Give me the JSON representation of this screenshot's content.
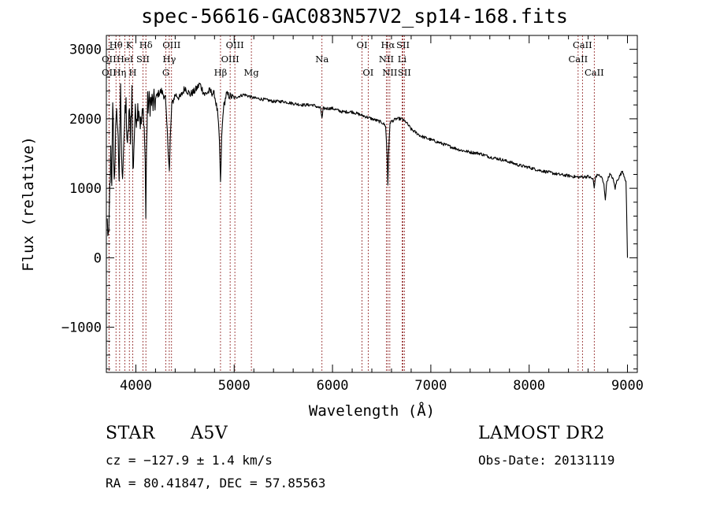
{
  "chart_data": {
    "type": "line",
    "title": "spec-56616-GAC083N57V2_sp14-168.fits",
    "xlabel": "Wavelength (Å)",
    "ylabel": "Flux (relative)",
    "xlim": [
      3700,
      9100
    ],
    "ylim": [
      -1650,
      3200
    ],
    "x_ticks": [
      4000,
      5000,
      6000,
      7000,
      8000,
      9000
    ],
    "y_ticks": [
      -1000,
      0,
      1000,
      2000,
      3000
    ],
    "grid": false,
    "colors": {
      "spectrum": "#000000",
      "line_markers": "#8b1a1a"
    },
    "spectrum_nodes": [
      [
        3710,
        500
      ],
      [
        3725,
        200
      ],
      [
        3735,
        1000
      ],
      [
        3745,
        1450
      ],
      [
        3755,
        900
      ],
      [
        3765,
        2300
      ],
      [
        3780,
        1100
      ],
      [
        3795,
        1800
      ],
      [
        3810,
        2100
      ],
      [
        3830,
        1200
      ],
      [
        3845,
        2350
      ],
      [
        3860,
        1100
      ],
      [
        3880,
        1800
      ],
      [
        3900,
        2200
      ],
      [
        3915,
        1500
      ],
      [
        3930,
        2100
      ],
      [
        3945,
        1800
      ],
      [
        3960,
        2400
      ],
      [
        3970,
        1200
      ],
      [
        3990,
        2000
      ],
      [
        4010,
        2100
      ],
      [
        4030,
        2200
      ],
      [
        4050,
        1900
      ],
      [
        4080,
        2100
      ],
      [
        4095,
        1400
      ],
      [
        4101,
        500
      ],
      [
        4108,
        1600
      ],
      [
        4120,
        2200
      ],
      [
        4150,
        2250
      ],
      [
        4180,
        2200
      ],
      [
        4220,
        2350
      ],
      [
        4260,
        2400
      ],
      [
        4300,
        2300
      ],
      [
        4320,
        1800
      ],
      [
        4335,
        1400
      ],
      [
        4341,
        1250
      ],
      [
        4350,
        1700
      ],
      [
        4365,
        2200
      ],
      [
        4400,
        2350
      ],
      [
        4450,
        2300
      ],
      [
        4500,
        2450
      ],
      [
        4550,
        2350
      ],
      [
        4600,
        2400
      ],
      [
        4650,
        2500
      ],
      [
        4700,
        2350
      ],
      [
        4750,
        2400
      ],
      [
        4800,
        2350
      ],
      [
        4830,
        2100
      ],
      [
        4850,
        1700
      ],
      [
        4861,
        1050
      ],
      [
        4872,
        1700
      ],
      [
        4890,
        2150
      ],
      [
        4920,
        2350
      ],
      [
        5000,
        2300
      ],
      [
        5100,
        2350
      ],
      [
        5200,
        2300
      ],
      [
        5300,
        2280
      ],
      [
        5400,
        2250
      ],
      [
        5500,
        2250
      ],
      [
        5600,
        2220
      ],
      [
        5700,
        2200
      ],
      [
        5800,
        2200
      ],
      [
        5880,
        2150
      ],
      [
        5893,
        2000
      ],
      [
        5906,
        2150
      ],
      [
        6000,
        2150
      ],
      [
        6100,
        2100
      ],
      [
        6200,
        2100
      ],
      [
        6300,
        2050
      ],
      [
        6400,
        2000
      ],
      [
        6500,
        1950
      ],
      [
        6540,
        1900
      ],
      [
        6555,
        1500
      ],
      [
        6563,
        1050
      ],
      [
        6571,
        1500
      ],
      [
        6585,
        1950
      ],
      [
        6650,
        2000
      ],
      [
        6700,
        2000
      ],
      [
        6750,
        1950
      ],
      [
        6800,
        1850
      ],
      [
        6900,
        1750
      ],
      [
        7000,
        1700
      ],
      [
        7100,
        1650
      ],
      [
        7200,
        1600
      ],
      [
        7300,
        1550
      ],
      [
        7400,
        1520
      ],
      [
        7500,
        1500
      ],
      [
        7600,
        1450
      ],
      [
        7700,
        1420
      ],
      [
        7800,
        1380
      ],
      [
        7900,
        1330
      ],
      [
        8000,
        1300
      ],
      [
        8100,
        1260
      ],
      [
        8200,
        1230
      ],
      [
        8300,
        1200
      ],
      [
        8400,
        1180
      ],
      [
        8500,
        1160
      ],
      [
        8600,
        1170
      ],
      [
        8650,
        1130
      ],
      [
        8662,
        1000
      ],
      [
        8672,
        1150
      ],
      [
        8700,
        1200
      ],
      [
        8740,
        1150
      ],
      [
        8760,
        1050
      ],
      [
        8775,
        850
      ],
      [
        8790,
        1100
      ],
      [
        8820,
        1200
      ],
      [
        8850,
        1150
      ],
      [
        8875,
        1000
      ],
      [
        8890,
        1100
      ],
      [
        8910,
        1150
      ],
      [
        8930,
        1200
      ],
      [
        8950,
        1250
      ],
      [
        8985,
        1100
      ],
      [
        9000,
        0
      ]
    ],
    "spectral_lines": [
      {
        "name": "Hθ",
        "wavelength": 3798,
        "row": 0
      },
      {
        "name": "OII",
        "wavelength": 3727,
        "row": 1
      },
      {
        "name": "OII",
        "wavelength": 3727,
        "row": 2
      },
      {
        "name": "Hη",
        "wavelength": 3835,
        "row": 2
      },
      {
        "name": "HeI",
        "wavelength": 3889,
        "row": 1
      },
      {
        "name": "K",
        "wavelength": 3934,
        "row": 0
      },
      {
        "name": "H",
        "wavelength": 3969,
        "row": 2
      },
      {
        "name": "Hδ",
        "wavelength": 4102,
        "row": 0
      },
      {
        "name": "SII",
        "wavelength": 4072,
        "row": 1
      },
      {
        "name": "OIII",
        "wavelength": 4363,
        "row": 0
      },
      {
        "name": "Hγ",
        "wavelength": 4340,
        "row": 1
      },
      {
        "name": "G",
        "wavelength": 4305,
        "row": 2
      },
      {
        "name": "Hβ",
        "wavelength": 4861,
        "row": 2
      },
      {
        "name": "OIII",
        "wavelength": 5007,
        "row": 0
      },
      {
        "name": "OIII",
        "wavelength": 4959,
        "row": 1
      },
      {
        "name": "Mg",
        "wavelength": 5175,
        "row": 2
      },
      {
        "name": "Na",
        "wavelength": 5893,
        "row": 1
      },
      {
        "name": "OI",
        "wavelength": 6300,
        "row": 0
      },
      {
        "name": "OI",
        "wavelength": 6363,
        "row": 2
      },
      {
        "name": "Hα",
        "wavelength": 6563,
        "row": 0
      },
      {
        "name": "NII",
        "wavelength": 6548,
        "row": 1
      },
      {
        "name": "NII",
        "wavelength": 6583,
        "row": 2
      },
      {
        "name": "SII",
        "wavelength": 6717,
        "row": 0
      },
      {
        "name": "Li",
        "wavelength": 6708,
        "row": 1
      },
      {
        "name": "SII",
        "wavelength": 6731,
        "row": 2
      },
      {
        "name": "CaII",
        "wavelength": 8542,
        "row": 0
      },
      {
        "name": "CaII",
        "wavelength": 8498,
        "row": 1
      },
      {
        "name": "CaII",
        "wavelength": 8662,
        "row": 2
      }
    ]
  },
  "info": {
    "object_class": "STAR",
    "subclass": "A5V",
    "survey": "LAMOST DR2",
    "cz": "cz = −127.9 ± 1.4 km/s",
    "obs_date": "Obs-Date: 20131119",
    "coords": "RA =  80.41847, DEC =  57.85563"
  }
}
